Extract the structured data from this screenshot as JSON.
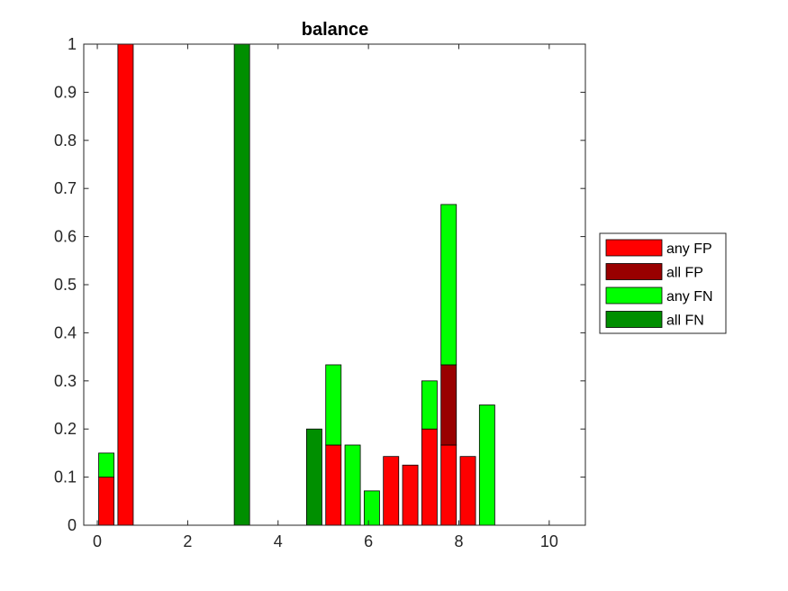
{
  "chart_data": {
    "type": "bar",
    "stacked": true,
    "title": "balance",
    "xlabel": "",
    "ylabel": "",
    "xlim": [
      -0.3,
      10.8
    ],
    "ylim": [
      0,
      1
    ],
    "xticks": [
      "0",
      "2",
      "4",
      "6",
      "8",
      "10"
    ],
    "yticks": [
      "0",
      "0.1",
      "0.2",
      "0.3",
      "0.4",
      "0.5",
      "0.6",
      "0.7",
      "0.8",
      "0.9",
      "1"
    ],
    "legend_position": "outside-right",
    "x": [
      0.2,
      0.625,
      3.2,
      4.8,
      5.225,
      5.65,
      6.075,
      6.5,
      6.925,
      7.35,
      7.775,
      8.2,
      8.625
    ],
    "series": [
      {
        "name": "any FP",
        "color": "#ff0000",
        "values": [
          0.1,
          1.0,
          0,
          0,
          0.1667,
          0,
          0,
          0.1429,
          0.125,
          0.2,
          0.1667,
          0.1429,
          0
        ]
      },
      {
        "name": "all FP",
        "color": "#990000",
        "values": [
          0,
          0,
          0,
          0,
          0,
          0,
          0,
          0,
          0,
          0,
          0.1667,
          0,
          0
        ]
      },
      {
        "name": "any FN",
        "color": "#00ff00",
        "values": [
          0.05,
          0,
          0,
          0,
          0.1667,
          0.1667,
          0.0714,
          0,
          0,
          0.1,
          0.3333,
          0,
          0.25
        ]
      },
      {
        "name": "all FN",
        "color": "#008f00",
        "values": [
          0,
          0,
          1.0,
          0.2,
          0,
          0,
          0,
          0,
          0,
          0,
          0,
          0,
          0
        ]
      }
    ]
  }
}
